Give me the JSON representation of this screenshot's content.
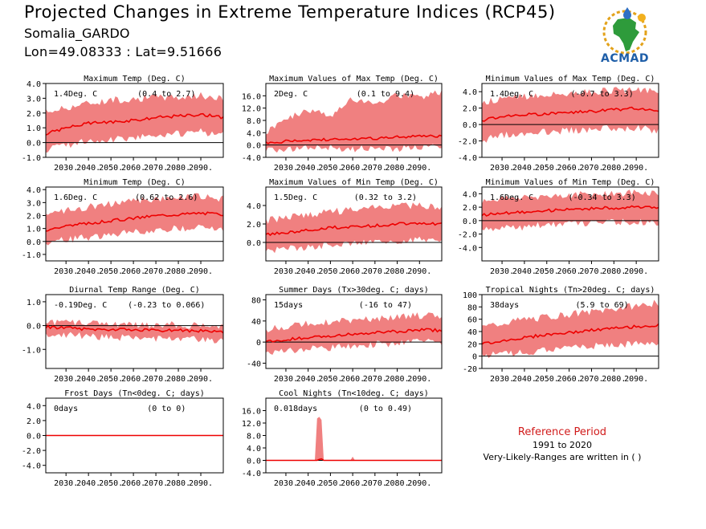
{
  "header": {
    "title": "Projected Changes in Extreme Temperature Indices (RCP45)",
    "location": "Somalia_GARDO",
    "coords": "Lon=49.08333 : Lat=9.51666"
  },
  "logo": {
    "text": "ACMAD"
  },
  "reference": {
    "title": "Reference Period",
    "years": "1991 to 2020",
    "note": "Very-Likely-Ranges are written in ( )"
  },
  "colors": {
    "band": "#f08080",
    "line": "#ee0000",
    "zero": "#000000",
    "ref_title": "#d11b1b"
  },
  "chart_data": [
    {
      "type": "line",
      "title": "Maximum Temp (Deg. C)",
      "annotation": "1.4Deg. C",
      "range_text": "(0.4 to 2.7)",
      "x_range": [
        2021,
        2100
      ],
      "ylim": [
        -1.0,
        4.0
      ],
      "yticks": [
        -1.0,
        0.0,
        1.0,
        2.0,
        3.0,
        4.0
      ],
      "xticks": [
        "2030.",
        "2040.",
        "2050.",
        "2060.",
        "2070.",
        "2080.",
        "2090."
      ],
      "series": [
        {
          "x": [
            2021,
            2030,
            2040,
            2050,
            2060,
            2070,
            2080,
            2090,
            2100
          ],
          "values": [
            0.6,
            1.0,
            1.3,
            1.4,
            1.5,
            1.7,
            1.8,
            1.9,
            1.7
          ]
        },
        {
          "x": [
            2021,
            2030,
            2040,
            2050,
            2060,
            2070,
            2080,
            2090,
            2100
          ],
          "values": [
            -0.4,
            -0.1,
            0.2,
            0.3,
            0.4,
            0.6,
            0.7,
            0.8,
            0.6
          ]
        },
        {
          "x": [
            2021,
            2030,
            2040,
            2050,
            2060,
            2070,
            2080,
            2090,
            2100
          ],
          "values": [
            2.0,
            2.3,
            2.6,
            2.8,
            2.9,
            3.0,
            3.0,
            3.1,
            2.9
          ]
        }
      ],
      "grid": false
    },
    {
      "type": "line",
      "title": "Maximum Values of Max Temp (Deg. C)",
      "annotation": "2Deg. C",
      "range_text": "(0.1 to 9.4)",
      "x_range": [
        2021,
        2100
      ],
      "ylim": [
        -4.0,
        20.0
      ],
      "yticks": [
        -4.0,
        0.0,
        4.0,
        8.0,
        12.0,
        16.0
      ],
      "xticks": [
        "2030.",
        "2040.",
        "2050.",
        "2060.",
        "2070.",
        "2080.",
        "2090."
      ],
      "series": [
        {
          "x": [
            2021,
            2030,
            2040,
            2050,
            2060,
            2070,
            2080,
            2090,
            2100
          ],
          "values": [
            0.8,
            1.2,
            1.5,
            1.8,
            2.0,
            2.2,
            2.5,
            2.8,
            3.0
          ]
        },
        {
          "x": [
            2021,
            2030,
            2040,
            2050,
            2060,
            2070,
            2080,
            2090,
            2100
          ],
          "values": [
            -1.0,
            -1.5,
            -0.8,
            -0.5,
            -1.0,
            -0.5,
            -0.8,
            -0.5,
            -0.3
          ]
        },
        {
          "x": [
            2021,
            2030,
            2040,
            2050,
            2060,
            2070,
            2080,
            2090,
            2100
          ],
          "values": [
            4.0,
            8.0,
            11.0,
            9.0,
            15.0,
            13.0,
            16.0,
            15.0,
            17.0
          ]
        }
      ],
      "grid": false
    },
    {
      "type": "line",
      "title": "Minimum Values of Max Temp (Deg. C)",
      "annotation": "1.4Deg. C",
      "range_text": "(-0.7 to 3.3)",
      "x_range": [
        2021,
        2100
      ],
      "ylim": [
        -4.0,
        5.0
      ],
      "yticks": [
        -4.0,
        -2.0,
        0.0,
        2.0,
        4.0
      ],
      "xticks": [
        "2030.",
        "2040.",
        "2050.",
        "2060.",
        "2070.",
        "2080.",
        "2090."
      ],
      "series": [
        {
          "x": [
            2021,
            2030,
            2040,
            2050,
            2060,
            2070,
            2080,
            2090,
            2100
          ],
          "values": [
            0.5,
            1.0,
            1.2,
            1.3,
            1.5,
            1.6,
            1.8,
            2.0,
            1.7
          ]
        },
        {
          "x": [
            2021,
            2030,
            2040,
            2050,
            2060,
            2070,
            2080,
            2090,
            2100
          ],
          "values": [
            -1.8,
            -1.2,
            -1.0,
            -0.8,
            -0.6,
            -0.5,
            -0.3,
            -0.3,
            -0.6
          ]
        },
        {
          "x": [
            2021,
            2030,
            2040,
            2050,
            2060,
            2070,
            2080,
            2090,
            2100
          ],
          "values": [
            2.5,
            3.0,
            3.3,
            3.5,
            3.6,
            3.8,
            4.0,
            4.1,
            3.8
          ]
        }
      ],
      "grid": false
    },
    {
      "type": "line",
      "title": "Minimum Temp (Deg. C)",
      "annotation": "1.6Deg. C",
      "range_text": "(0.62 to 2.6)",
      "x_range": [
        2021,
        2100
      ],
      "ylim": [
        -1.5,
        4.2
      ],
      "yticks": [
        -1.0,
        0.0,
        1.0,
        2.0,
        3.0,
        4.0
      ],
      "xticks": [
        "2030.",
        "2040.",
        "2050.",
        "2060.",
        "2070.",
        "2080.",
        "2090."
      ],
      "series": [
        {
          "x": [
            2021,
            2030,
            2040,
            2050,
            2060,
            2070,
            2080,
            2090,
            2100
          ],
          "values": [
            0.9,
            1.2,
            1.4,
            1.6,
            1.8,
            2.0,
            2.1,
            2.2,
            2.1
          ]
        },
        {
          "x": [
            2021,
            2030,
            2040,
            2050,
            2060,
            2070,
            2080,
            2090,
            2100
          ],
          "values": [
            0.0,
            0.2,
            0.4,
            0.6,
            0.8,
            1.0,
            1.1,
            1.2,
            1.0
          ]
        },
        {
          "x": [
            2021,
            2030,
            2040,
            2050,
            2060,
            2070,
            2080,
            2090,
            2100
          ],
          "values": [
            2.0,
            2.3,
            2.6,
            2.8,
            3.0,
            3.2,
            3.3,
            3.4,
            3.2
          ]
        }
      ],
      "grid": false
    },
    {
      "type": "line",
      "title": "Maximum Values of Min Temp (Deg. C)",
      "annotation": "1.5Deg. C",
      "range_text": "(0.32 to 3.2)",
      "x_range": [
        2021,
        2100
      ],
      "ylim": [
        -2.0,
        6.0
      ],
      "yticks": [
        0.0,
        2.0,
        4.0
      ],
      "xticks": [
        "2030.",
        "2040.",
        "2050.",
        "2060.",
        "2070.",
        "2080.",
        "2090."
      ],
      "series": [
        {
          "x": [
            2021,
            2030,
            2040,
            2050,
            2060,
            2070,
            2080,
            2090,
            2100
          ],
          "values": [
            0.8,
            1.1,
            1.3,
            1.6,
            1.7,
            1.8,
            2.0,
            2.1,
            2.0
          ]
        },
        {
          "x": [
            2021,
            2030,
            2040,
            2050,
            2060,
            2070,
            2080,
            2090,
            2100
          ],
          "values": [
            -0.8,
            -0.6,
            -0.4,
            -0.2,
            0.0,
            0.2,
            0.3,
            0.4,
            0.2
          ]
        },
        {
          "x": [
            2021,
            2030,
            2040,
            2050,
            2060,
            2070,
            2080,
            2090,
            2100
          ],
          "values": [
            2.2,
            2.6,
            2.9,
            3.2,
            3.4,
            3.6,
            3.8,
            3.9,
            3.7
          ]
        }
      ],
      "grid": false
    },
    {
      "type": "line",
      "title": "Minimum Values of Min Temp (Deg. C)",
      "annotation": "1.6Deg. C",
      "range_text": "(-0.34 to 3.3)",
      "x_range": [
        2021,
        2100
      ],
      "ylim": [
        -6.0,
        5.0
      ],
      "yticks": [
        -4.0,
        -2.0,
        0.0,
        2.0,
        4.0
      ],
      "xticks": [
        "2030.",
        "2040.",
        "2050.",
        "2060.",
        "2070.",
        "2080.",
        "2090."
      ],
      "series": [
        {
          "x": [
            2021,
            2030,
            2040,
            2050,
            2060,
            2070,
            2080,
            2090,
            2100
          ],
          "values": [
            0.8,
            1.1,
            1.3,
            1.5,
            1.6,
            1.8,
            1.9,
            2.0,
            1.9
          ]
        },
        {
          "x": [
            2021,
            2030,
            2040,
            2050,
            2060,
            2070,
            2080,
            2090,
            2100
          ],
          "values": [
            -1.2,
            -1.0,
            -0.8,
            -0.5,
            -0.4,
            -0.2,
            -0.1,
            0.0,
            -0.2
          ]
        },
        {
          "x": [
            2021,
            2030,
            2040,
            2050,
            2060,
            2070,
            2080,
            2090,
            2100
          ],
          "values": [
            2.8,
            3.1,
            3.3,
            3.5,
            3.6,
            3.8,
            3.9,
            4.0,
            3.9
          ]
        }
      ],
      "grid": false
    },
    {
      "type": "line",
      "title": "Diurnal Temp Range (Deg. C)",
      "annotation": "-0.19Deg. C",
      "range_text": "(-0.23 to 0.066)",
      "x_range": [
        2021,
        2100
      ],
      "ylim": [
        -1.8,
        1.3
      ],
      "yticks": [
        -1.0,
        0.0,
        1.0
      ],
      "xticks": [
        "2030.",
        "2040.",
        "2050.",
        "2060.",
        "2070.",
        "2080.",
        "2090."
      ],
      "series": [
        {
          "x": [
            2021,
            2030,
            2040,
            2050,
            2060,
            2070,
            2080,
            2090,
            2100
          ],
          "values": [
            -0.05,
            -0.1,
            -0.15,
            -0.15,
            -0.18,
            -0.2,
            -0.2,
            -0.22,
            -0.3
          ]
        },
        {
          "x": [
            2021,
            2030,
            2040,
            2050,
            2060,
            2070,
            2080,
            2090,
            2100
          ],
          "values": [
            -0.3,
            -0.35,
            -0.4,
            -0.45,
            -0.45,
            -0.5,
            -0.5,
            -0.55,
            -0.6
          ]
        },
        {
          "x": [
            2021,
            2030,
            2040,
            2050,
            2060,
            2070,
            2080,
            2090,
            2100
          ],
          "values": [
            0.1,
            0.05,
            0.05,
            0.02,
            0.0,
            0.0,
            -0.02,
            -0.05,
            -0.1
          ]
        }
      ],
      "grid": false
    },
    {
      "type": "line",
      "title": "Summer Days (Tx>30deg. C; days)",
      "annotation": "15days",
      "range_text": "(-16 to 47)",
      "x_range": [
        2021,
        2100
      ],
      "ylim": [
        -50,
        90
      ],
      "yticks": [
        -40,
        0,
        40,
        80
      ],
      "xticks": [
        "2030.",
        "2040.",
        "2050.",
        "2060.",
        "2070.",
        "2080.",
        "2090."
      ],
      "series": [
        {
          "x": [
            2021,
            2030,
            2040,
            2050,
            2060,
            2070,
            2080,
            2090,
            2100
          ],
          "values": [
            0,
            5,
            8,
            12,
            15,
            18,
            20,
            23,
            22
          ]
        },
        {
          "x": [
            2021,
            2030,
            2040,
            2050,
            2060,
            2070,
            2080,
            2090,
            2100
          ],
          "values": [
            -20,
            -15,
            -12,
            -8,
            -5,
            -2,
            0,
            3,
            2
          ]
        },
        {
          "x": [
            2021,
            2030,
            2040,
            2050,
            2060,
            2070,
            2080,
            2090,
            2100
          ],
          "values": [
            22,
            28,
            33,
            37,
            40,
            43,
            45,
            48,
            47
          ]
        }
      ],
      "grid": false
    },
    {
      "type": "line",
      "title": "Tropical Nights (Tn>20deg. C; days)",
      "annotation": "38days",
      "range_text": "(5.9 to 69)",
      "x_range": [
        2021,
        2100
      ],
      "ylim": [
        -20,
        100
      ],
      "yticks": [
        -20,
        0,
        20,
        40,
        60,
        80,
        100
      ],
      "xticks": [
        "2030.",
        "2040.",
        "2050.",
        "2060.",
        "2070.",
        "2080.",
        "2090."
      ],
      "series": [
        {
          "x": [
            2021,
            2030,
            2040,
            2050,
            2060,
            2070,
            2080,
            2090,
            2100
          ],
          "values": [
            20,
            25,
            30,
            35,
            38,
            42,
            45,
            48,
            50
          ]
        },
        {
          "x": [
            2021,
            2030,
            2040,
            2050,
            2060,
            2070,
            2080,
            2090,
            2100
          ],
          "values": [
            2,
            5,
            8,
            12,
            15,
            18,
            20,
            22,
            22
          ]
        },
        {
          "x": [
            2021,
            2030,
            2040,
            2050,
            2060,
            2070,
            2080,
            2090,
            2100
          ],
          "values": [
            45,
            52,
            58,
            62,
            66,
            70,
            75,
            80,
            85
          ]
        }
      ],
      "grid": false
    },
    {
      "type": "line",
      "title": "Frost Days (Tn<0deg. C; days)",
      "annotation": "0days",
      "range_text": "(0 to 0)",
      "x_range": [
        2021,
        2100
      ],
      "ylim": [
        -5.0,
        5.0
      ],
      "yticks": [
        -4.0,
        -2.0,
        0.0,
        2.0,
        4.0
      ],
      "xticks": [
        "2030.",
        "2040.",
        "2050.",
        "2060.",
        "2070.",
        "2080.",
        "2090."
      ],
      "series": [
        {
          "x": [
            2021,
            2100
          ],
          "values": [
            0,
            0
          ]
        },
        {
          "x": [
            2021,
            2100
          ],
          "values": [
            0,
            0
          ]
        },
        {
          "x": [
            2021,
            2100
          ],
          "values": [
            0,
            0
          ]
        }
      ],
      "grid": false
    },
    {
      "type": "line",
      "title": "Cool Nights (Tn<10deg. C; days)",
      "annotation": "0.018days",
      "range_text": "(0 to 0.49)",
      "x_range": [
        2021,
        2100
      ],
      "ylim": [
        -4.0,
        20.0
      ],
      "yticks": [
        -4.0,
        0.0,
        4.0,
        8.0,
        12.0,
        16.0
      ],
      "xticks": [
        "2030.",
        "2040.",
        "2050.",
        "2060.",
        "2070.",
        "2080.",
        "2090."
      ],
      "series": [
        {
          "x": [
            2021,
            2044,
            2045,
            2046,
            2047,
            2060,
            2100
          ],
          "values": [
            0,
            0,
            0.3,
            0.5,
            0,
            0,
            0
          ]
        },
        {
          "x": [
            2021,
            2100
          ],
          "values": [
            0,
            0
          ]
        },
        {
          "x": [
            2021,
            2043,
            2044,
            2045,
            2046,
            2047,
            2059,
            2060,
            2061,
            2100
          ],
          "values": [
            0,
            0,
            13.5,
            14.0,
            13.0,
            0,
            0,
            1.2,
            0,
            0
          ]
        }
      ],
      "grid": false
    }
  ]
}
